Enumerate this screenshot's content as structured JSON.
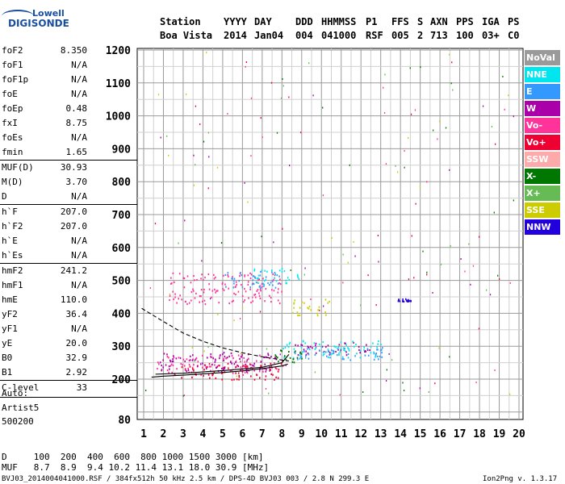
{
  "logo": {
    "line1": "Lowell",
    "line2": "DIGISONDE"
  },
  "header": {
    "row1": [
      "Station",
      "YYYY",
      "DAY",
      "DDD",
      "HHMMSS",
      "P1",
      "FFS",
      "S",
      "AXN",
      "PPS",
      "IGA",
      "PS"
    ],
    "row2": [
      "Boa Vista",
      "2014",
      "Jan04",
      "004",
      "041000",
      "RSF",
      "005",
      "2",
      "713",
      "100",
      "03+",
      "C0"
    ]
  },
  "params": [
    {
      "name": "foF2",
      "value": "8.350"
    },
    {
      "name": "foF1",
      "value": "N/A"
    },
    {
      "name": "foF1p",
      "value": "N/A"
    },
    {
      "name": "foE",
      "value": "N/A"
    },
    {
      "name": "foEp",
      "value": "0.48"
    },
    {
      "name": "fxI",
      "value": "8.75"
    },
    {
      "name": "foEs",
      "value": "N/A"
    },
    {
      "name": "fmin",
      "value": "1.65"
    },
    {
      "name": "MUF(D)",
      "value": "30.93",
      "divider": true
    },
    {
      "name": "M(D)",
      "value": "3.70"
    },
    {
      "name": "D",
      "value": "N/A"
    },
    {
      "name": "h`F",
      "value": "207.0",
      "divider": true
    },
    {
      "name": "h`F2",
      "value": "207.0"
    },
    {
      "name": "h`E",
      "value": "N/A"
    },
    {
      "name": "h`Es",
      "value": "N/A"
    },
    {
      "name": "hmF2",
      "value": "241.2",
      "divider": true
    },
    {
      "name": "hmF1",
      "value": "N/A"
    },
    {
      "name": "hmE",
      "value": "110.0"
    },
    {
      "name": "yF2",
      "value": "36.4"
    },
    {
      "name": "yF1",
      "value": "N/A"
    },
    {
      "name": "yE",
      "value": "20.0"
    },
    {
      "name": "B0",
      "value": "32.9"
    },
    {
      "name": "B1",
      "value": "2.92"
    },
    {
      "name": "C-level",
      "value": "33",
      "divider": true
    }
  ],
  "auto": [
    "Auto:",
    "Artist5",
    "500200"
  ],
  "legend": [
    {
      "label": "NoVal",
      "color": "#9a9a9a"
    },
    {
      "label": "NNE",
      "color": "#00e5ee"
    },
    {
      "label": "E",
      "color": "#3399ff"
    },
    {
      "label": "W",
      "color": "#aa00aa"
    },
    {
      "label": "Vo-",
      "color": "#ff3399"
    },
    {
      "label": "Vo+",
      "color": "#ee0033"
    },
    {
      "label": "SSW",
      "color": "#ffaaaa"
    },
    {
      "label": "X-",
      "color": "#007700"
    },
    {
      "label": "X+",
      "color": "#66bb55"
    },
    {
      "label": "SSE",
      "color": "#cccc00"
    },
    {
      "label": "NNW",
      "color": "#2200dd"
    }
  ],
  "footer": {
    "d_row": "D     100  200  400  600  800 1000 1500 3000 [km]",
    "muf_row": "MUF   8.7  8.9  9.4 10.2 11.4 13.1 18.0 30.9 [MHz]",
    "file_line": "BVJ03_2014004041000.RSF / 384fx512h 50 kHz 2.5 km / DPS-4D BVJ03 003 / 2.8 N 299.3 E",
    "version": "Ion2Png v. 1.3.17"
  },
  "chart_data": {
    "type": "scatter",
    "xlim": [
      0.75,
      20.1
    ],
    "ylim": [
      80,
      1210
    ],
    "xticks": [
      1,
      2,
      3,
      4,
      5,
      6,
      7,
      8,
      9,
      10,
      11,
      12,
      13,
      14,
      15,
      16,
      17,
      18,
      19,
      20
    ],
    "yticks": [
      80,
      200,
      300,
      400,
      500,
      600,
      700,
      800,
      900,
      1000,
      1100,
      1200
    ],
    "grid": true,
    "legend_position": "right",
    "series": [
      {
        "name": "Vo-",
        "color": "#ff3399",
        "clusters": [
          {
            "x": [
              1.6,
              8.2
            ],
            "y": [
              215,
              275
            ]
          },
          {
            "x": [
              2.2,
              8.0
            ],
            "y": [
              430,
              525
            ]
          }
        ]
      },
      {
        "name": "Vo+",
        "color": "#ee0033",
        "clusters": [
          {
            "x": [
              2.5,
              8.0
            ],
            "y": [
              200,
              250
            ]
          }
        ]
      },
      {
        "name": "W",
        "color": "#aa00aa",
        "clusters": [
          {
            "x": [
              1.8,
              7.8
            ],
            "y": [
              225,
              285
            ]
          },
          {
            "x": [
              8.5,
              12.5
            ],
            "y": [
              275,
              315
            ]
          }
        ]
      },
      {
        "name": "NNE",
        "color": "#00e5ee",
        "clusters": [
          {
            "x": [
              8.0,
              13.0
            ],
            "y": [
              265,
              320
            ]
          },
          {
            "x": [
              6.5,
              9.0
            ],
            "y": [
              490,
              540
            ]
          }
        ]
      },
      {
        "name": "E",
        "color": "#3399ff",
        "clusters": [
          {
            "x": [
              8.5,
              13.2
            ],
            "y": [
              260,
              300
            ]
          },
          {
            "x": [
              5.0,
              8.0
            ],
            "y": [
              480,
              530
            ]
          }
        ]
      },
      {
        "name": "SSE",
        "color": "#cccc00",
        "clusters": [
          {
            "x": [
              8.5,
              10.5
            ],
            "y": [
              395,
              445
            ]
          }
        ]
      },
      {
        "name": "X-",
        "color": "#007700",
        "clusters": [
          {
            "x": [
              7.5,
              9.0
            ],
            "y": [
              250,
              290
            ]
          }
        ]
      },
      {
        "name": "NNW",
        "color": "#2200dd",
        "clusters": [
          {
            "x": [
              13.8,
              14.5
            ],
            "y": [
              438,
              446
            ]
          }
        ]
      }
    ],
    "traces": [
      {
        "style": "solid",
        "x": [
          1.4,
          2.0,
          3.0,
          4.0,
          5.0,
          6.0,
          7.0,
          8.0,
          8.3
        ],
        "y": [
          206,
          209,
          212,
          216,
          220,
          225,
          232,
          240,
          246
        ]
      },
      {
        "style": "solid",
        "x": [
          1.6,
          3.0,
          5.0,
          7.0,
          8.0,
          8.35
        ],
        "y": [
          215,
          218,
          226,
          236,
          250,
          275
        ]
      },
      {
        "style": "dashed",
        "x": [
          0.9,
          2.0,
          3.0,
          4.0,
          5.0,
          6.0,
          7.0,
          8.0,
          8.35
        ],
        "y": [
          415,
          375,
          340,
          315,
          295,
          280,
          268,
          258,
          255
        ]
      }
    ]
  }
}
